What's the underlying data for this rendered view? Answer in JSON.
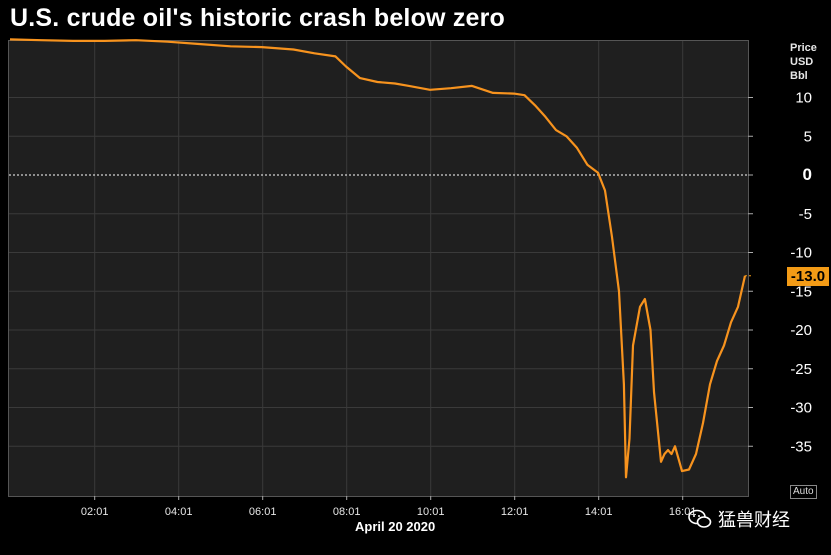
{
  "title": "U.S. crude oil's historic crash below zero",
  "axis_unit": {
    "line1": "Price",
    "line2": "USD",
    "line3": "Bbl"
  },
  "date_label": "April 20 2020",
  "auto_label": "Auto",
  "last_value_label": "-13.0",
  "watermark": "猛兽财经",
  "colors": {
    "line": "#f7931e",
    "badge": "#f39b16",
    "plot_bg": "#1f1f1f",
    "grid": "#3a3a3a",
    "zero_line": "#ffffff"
  },
  "chart_data": {
    "type": "line",
    "title": "U.S. crude oil's historic crash below zero",
    "xlabel": "April 20 2020",
    "ylabel": "Price USD Bbl",
    "x_tick_labels": [
      "02:01",
      "04:01",
      "06:01",
      "08:01",
      "10:01",
      "12:01",
      "14:01",
      "16:01"
    ],
    "y_ticks": [
      10,
      5,
      0,
      -5,
      -10,
      -15,
      -20,
      -25,
      -30,
      -35
    ],
    "ylim": [
      -40,
      15
    ],
    "grid": true,
    "reference_line": 0,
    "last_value": -13.0,
    "x": [
      "00:00",
      "00:45",
      "01:30",
      "02:15",
      "03:00",
      "03:45",
      "04:30",
      "05:15",
      "06:00",
      "06:45",
      "07:15",
      "07:45",
      "08:00",
      "08:20",
      "08:45",
      "09:10",
      "09:30",
      "10:00",
      "10:30",
      "11:00",
      "11:30",
      "12:00",
      "12:15",
      "12:30",
      "12:45",
      "13:00",
      "13:15",
      "13:30",
      "13:45",
      "14:00",
      "14:10",
      "14:20",
      "14:30",
      "14:37",
      "14:40",
      "14:45",
      "14:50",
      "15:00",
      "15:07",
      "15:15",
      "15:20",
      "15:30",
      "15:35",
      "15:40",
      "15:45",
      "15:50",
      "16:00",
      "16:10",
      "16:20",
      "16:30",
      "16:40",
      "16:50",
      "17:00",
      "17:10",
      "17:20",
      "17:30"
    ],
    "series": [
      {
        "values": [
          17.5,
          17.4,
          17.3,
          17.3,
          17.4,
          17.2,
          16.9,
          16.6,
          16.5,
          16.2,
          15.7,
          15.3,
          14.0,
          12.5,
          12.0,
          11.8,
          11.5,
          11.0,
          11.2,
          11.5,
          10.6,
          10.5,
          10.3,
          9.0,
          7.5,
          5.8,
          5.0,
          3.5,
          1.3,
          0.3,
          -2.0,
          -8.0,
          -15.0,
          -27.0,
          -39.0,
          -34.0,
          -22.0,
          -17.0,
          -16.0,
          -20.0,
          -28.0,
          -37.0,
          -36.0,
          -35.5,
          -36.0,
          -35.0,
          -38.2,
          -38.0,
          -36.0,
          -32.0,
          -27.0,
          -24.0,
          -22.0,
          -19.0,
          -17.0,
          -13.0
        ]
      }
    ]
  }
}
